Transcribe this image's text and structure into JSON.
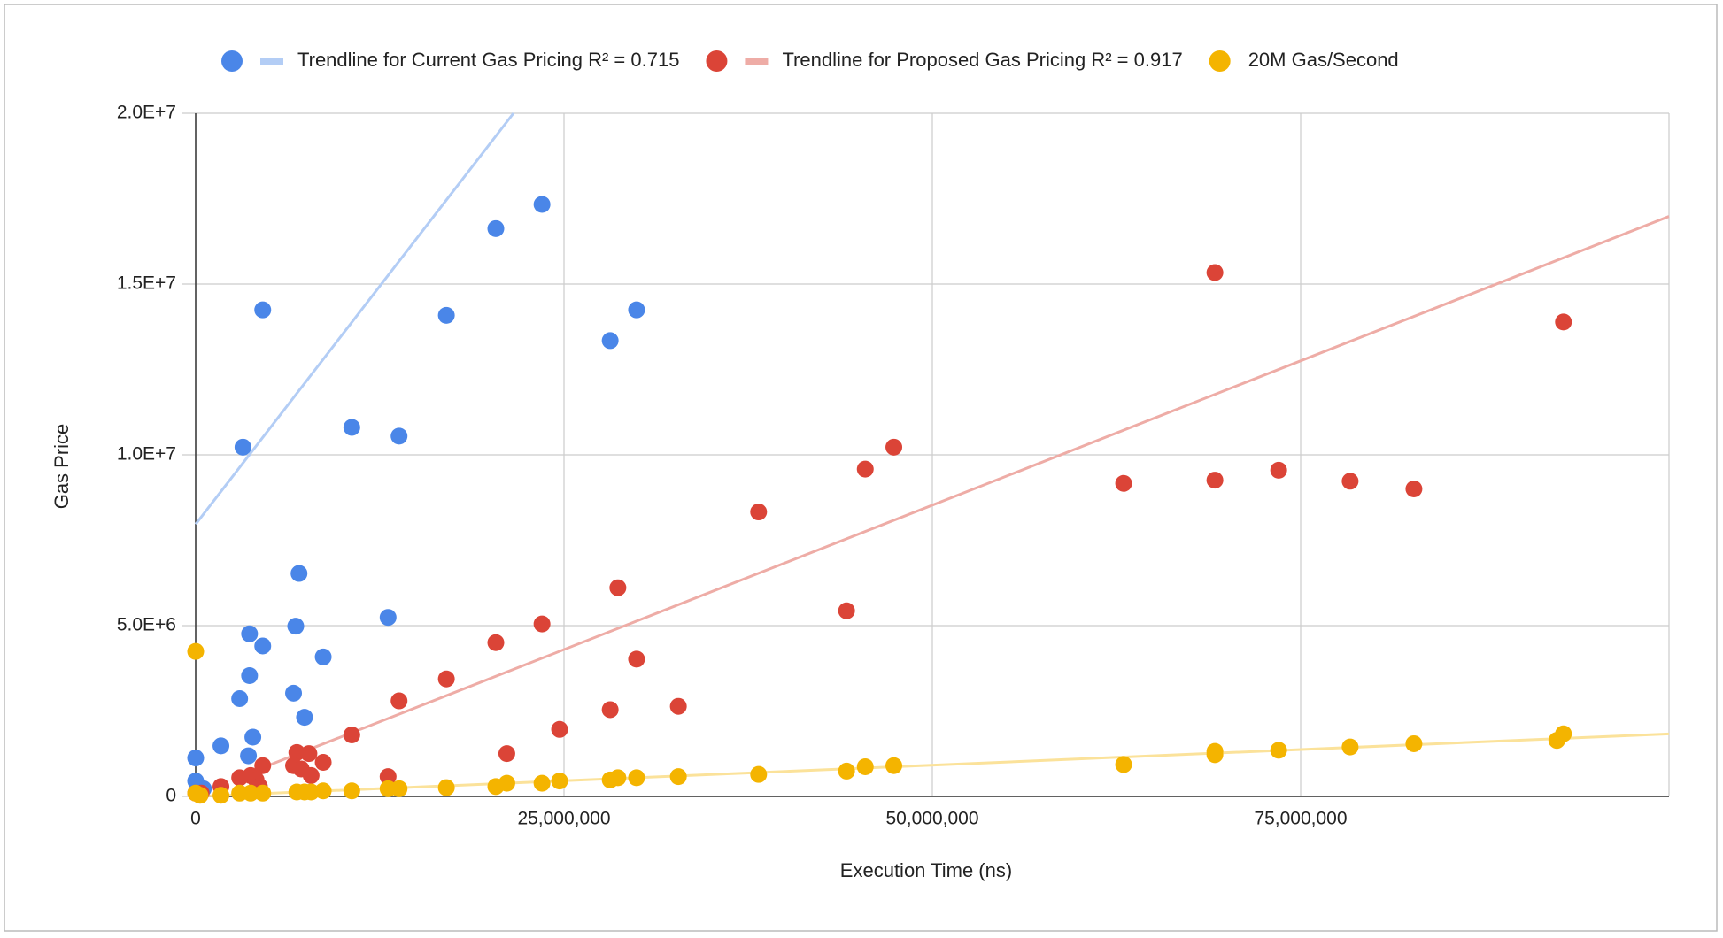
{
  "chart_data": {
    "type": "scatter",
    "x_label": "Execution Time (ns)",
    "y_label": "Gas Price",
    "xlim": [
      0,
      100000000
    ],
    "ylim": [
      0,
      20000000
    ],
    "xticks": [
      0,
      {
        "value": 25000000,
        "label": "25,000,000"
      },
      {
        "value": 50000000,
        "label": "50,000,000"
      },
      {
        "value": 75000000,
        "label": "75,000,000"
      }
    ],
    "yticks": [
      0,
      {
        "value": 5000000,
        "label": "5.0E+6"
      },
      {
        "value": 10000000,
        "label": "1.0E+7"
      },
      {
        "value": 15000000,
        "label": "1.5E+7"
      },
      {
        "value": 20000000,
        "label": "2.0E+7"
      }
    ],
    "grid": true,
    "legend": "top",
    "series": [
      {
        "color": "#4a86e8",
        "x": [
          0,
          0,
          522000,
          1716000,
          3209000,
          2985000,
          3657000,
          3657000,
          3881000,
          3582000,
          4552000,
          4552000,
          7015000,
          6642000,
          6791000,
          7388000,
          8657000,
          10597000,
          13060000,
          13806000,
          17015000,
          20373000,
          23507000,
          28134000,
          29925000
        ],
        "values": [
          1125000,
          450000,
          225000,
          1479000,
          10225000,
          2862000,
          4759000,
          3537000,
          1736000,
          1190000,
          14244000,
          4405000,
          6527000,
          3022000,
          4984000,
          2315000,
          4084000,
          10804000,
          5241000,
          10547000,
          14083000,
          16624000,
          17331000,
          13344000,
          14244000
        ]
      },
      {
        "color": "#db4437",
        "x": [
          0,
          373000,
          1716000,
          2985000,
          3731000,
          4104000,
          4552000,
          4328000,
          6866000,
          6642000,
          7164000,
          7687000,
          7836000,
          8657000,
          10597000,
          13060000,
          13806000,
          17015000,
          20373000,
          21119000,
          23507000,
          24701000,
          28134000,
          28657000,
          29925000,
          32761000,
          38209000,
          44179000,
          45448000,
          47388000,
          62985000,
          69179000,
          69179000,
          73507000,
          78358000,
          82687000,
          92836000
        ],
        "values": [
          96000,
          96000,
          289000,
          547000,
          611000,
          482000,
          900000,
          289000,
          1286000,
          900000,
          804000,
          1254000,
          611000,
          997000,
          1801000,
          579000,
          2797000,
          3440000,
          4502000,
          1254000,
          5048000,
          1961000,
          2540000,
          6109000,
          4019000,
          2637000,
          8328000,
          5434000,
          9582000,
          10225000,
          9164000,
          15337000,
          9260000,
          9550000,
          9228000,
          9003000,
          13890000
        ]
      },
      {
        "name": "20M Gas/Second",
        "color": "#f4b400",
        "x": [
          0,
          0,
          300000,
          1716000,
          2985000,
          3731000,
          4552000,
          6866000,
          7388000,
          7836000,
          8657000,
          10597000,
          13060000,
          13806000,
          17015000,
          20373000,
          21119000,
          23507000,
          24701000,
          28134000,
          28657000,
          29925000,
          32761000,
          38209000,
          44179000,
          45448000,
          47388000,
          62985000,
          69179000,
          69179000,
          73507000,
          78358000,
          82687000,
          92388000,
          92836000
        ],
        "values": [
          4244000,
          96000,
          32000,
          32000,
          96000,
          96000,
          96000,
          129000,
          129000,
          129000,
          161000,
          161000,
          225000,
          225000,
          257000,
          289000,
          386000,
          386000,
          450000,
          482000,
          547000,
          547000,
          579000,
          643000,
          740000,
          868000,
          900000,
          932000,
          1318000,
          1222000,
          1350000,
          1447000,
          1543000,
          1640000,
          1833000
        ]
      }
    ],
    "trendlines": [
      {
        "name": "Trendline for Current Gas Pricing R² = 0.715",
        "color": "#b3cdf5",
        "x": [
          0,
          21570000
        ],
        "values": [
          7970000,
          20000000
        ]
      },
      {
        "name": "Trendline for Proposed Gas Pricing R² = 0.917",
        "color": "#eeaca6",
        "x": [
          3000000,
          100000000
        ],
        "values": [
          580000,
          16980000
        ]
      },
      {
        "color": "#fbe29a",
        "x": [
          0,
          100000000
        ],
        "values": [
          0,
          1830000
        ]
      }
    ]
  }
}
